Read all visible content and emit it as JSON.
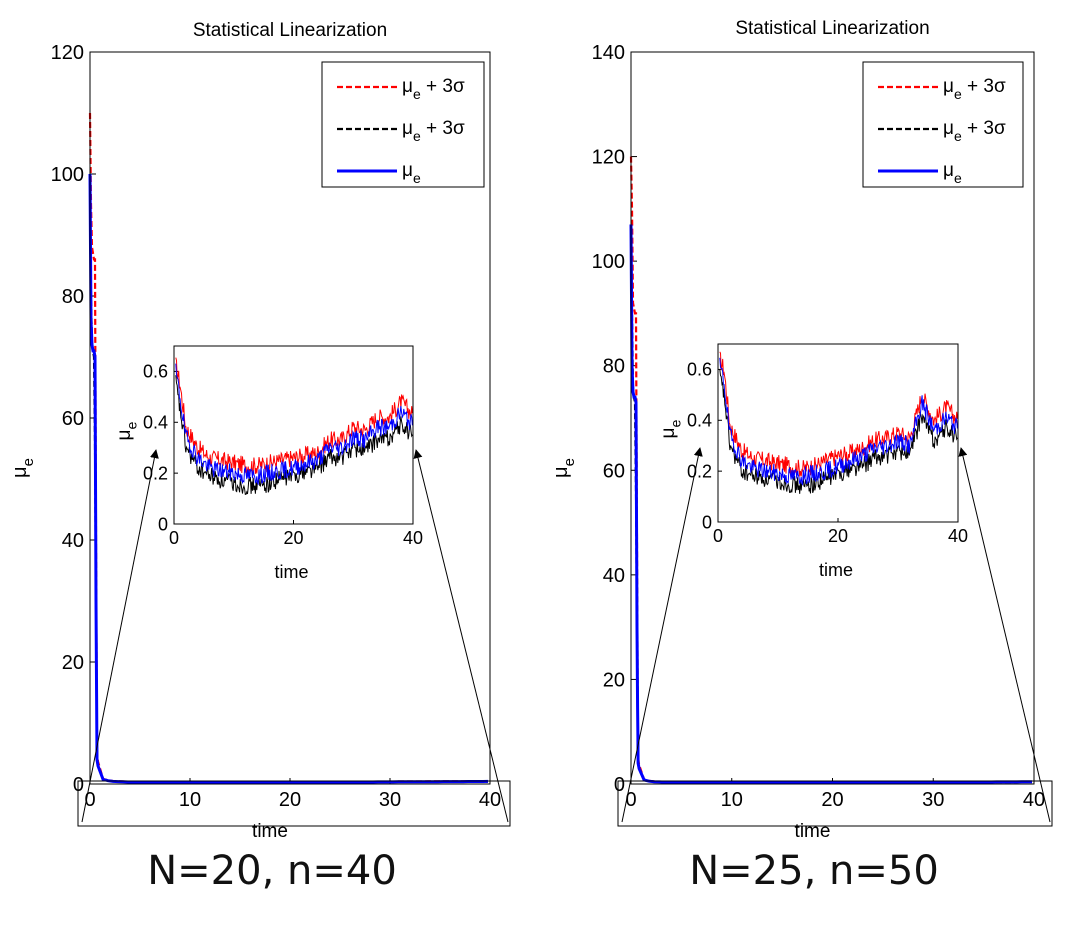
{
  "panels": [
    {
      "title": "Statistical Linearization",
      "caption": "N=20, n=40",
      "xlabel": "time",
      "ylabel": "μ",
      "ylabel_sub": "e",
      "xlim": [
        0,
        40
      ],
      "ylim": [
        0,
        120
      ],
      "xticks": [
        0,
        10,
        20,
        30,
        40
      ],
      "yticks": [
        0,
        20,
        40,
        60,
        80,
        100,
        120
      ],
      "legend": [
        {
          "main": "μ",
          "sub": "e",
          "suffix": " + 3σ",
          "color": "#ff0000",
          "style": "dashed"
        },
        {
          "main": "μ",
          "sub": "e",
          "suffix": " + 3σ",
          "color": "#000000",
          "style": "dashed"
        },
        {
          "main": "μ",
          "sub": "e",
          "suffix": "",
          "color": "#0000ff",
          "style": "solid"
        }
      ],
      "inset": {
        "xlabel": "time",
        "ylabel": "μ",
        "ylabel_sub": "e",
        "xlim": [
          0,
          40
        ],
        "ylim": [
          0,
          0.7
        ],
        "xticks": [
          0,
          20,
          40
        ],
        "yticks": [
          0,
          0.2,
          0.4,
          0.6
        ]
      }
    },
    {
      "title": "Statistical Linearization",
      "caption": "N=25, n=50",
      "xlabel": "time",
      "ylabel": "μ",
      "ylabel_sub": "e",
      "xlim": [
        0,
        40
      ],
      "ylim": [
        0,
        140
      ],
      "xticks": [
        0,
        10,
        20,
        30,
        40
      ],
      "yticks": [
        0,
        20,
        40,
        60,
        80,
        100,
        120,
        140
      ],
      "legend": [
        {
          "main": "μ",
          "sub": "e",
          "suffix": " + 3σ",
          "color": "#ff0000",
          "style": "dashed"
        },
        {
          "main": "μ",
          "sub": "e",
          "suffix": " + 3σ",
          "color": "#000000",
          "style": "dashed"
        },
        {
          "main": "μ",
          "sub": "e",
          "suffix": "",
          "color": "#0000ff",
          "style": "solid"
        }
      ],
      "inset": {
        "xlabel": "time",
        "ylabel": "μ",
        "ylabel_sub": "e",
        "xlim": [
          0,
          40
        ],
        "ylim": [
          0,
          0.7
        ],
        "xticks": [
          0,
          20,
          40
        ],
        "yticks": [
          0,
          0.2,
          0.4,
          0.6
        ]
      }
    }
  ],
  "chart_data": [
    {
      "type": "line",
      "title": "Statistical Linearization",
      "xlabel": "time",
      "ylabel": "μe",
      "xlim": [
        0,
        40
      ],
      "ylim": [
        0,
        120
      ],
      "series": [
        {
          "name": "μe + 3σ",
          "color": "#ff0000",
          "x": [
            0,
            0.1,
            0.2,
            0.3,
            0.4,
            0.5,
            0.6,
            0.7,
            1,
            2,
            5,
            10,
            20,
            30,
            40
          ],
          "y": [
            110,
            95,
            88,
            87,
            86,
            86,
            40,
            5,
            1.0,
            0.5,
            0.3,
            0.25,
            0.3,
            0.4,
            0.45
          ]
        },
        {
          "name": "μe + 3σ",
          "color": "#000000",
          "x": [
            0,
            0.1,
            0.2,
            0.3,
            0.4,
            0.5,
            0.6,
            0.7,
            1,
            2,
            5,
            10,
            20,
            30,
            40
          ],
          "y": [
            100,
            80,
            72,
            71,
            70,
            56,
            30,
            4,
            0.9,
            0.45,
            0.25,
            0.2,
            0.25,
            0.35,
            0.4
          ]
        },
        {
          "name": "μe",
          "color": "#0000ff",
          "x": [
            0,
            0.1,
            0.2,
            0.3,
            0.4,
            0.5,
            0.6,
            0.7,
            1,
            2,
            5,
            10,
            20,
            30,
            40
          ],
          "y": [
            100,
            76,
            72,
            71,
            71,
            70,
            30,
            4,
            0.9,
            0.45,
            0.25,
            0.2,
            0.25,
            0.35,
            0.42
          ]
        }
      ],
      "inset": {
        "xlim": [
          0,
          40
        ],
        "ylim": [
          0,
          0.7
        ],
        "series": [
          {
            "name": "μe + 3σ",
            "color": "#ff0000",
            "x": [
              0,
              1,
              2,
              4,
              6,
              8,
              10,
              12,
              14,
              16,
              18,
              20,
              22,
              24,
              26,
              28,
              30,
              32,
              34,
              36,
              38,
              40
            ],
            "y": [
              0.66,
              0.55,
              0.38,
              0.3,
              0.26,
              0.25,
              0.24,
              0.23,
              0.23,
              0.24,
              0.25,
              0.26,
              0.27,
              0.28,
              0.33,
              0.33,
              0.38,
              0.37,
              0.42,
              0.42,
              0.48,
              0.43
            ]
          },
          {
            "name": "μe + 3σ",
            "color": "#000000",
            "x": [
              0,
              1,
              2,
              4,
              6,
              8,
              10,
              12,
              14,
              16,
              18,
              20,
              22,
              24,
              26,
              28,
              30,
              32,
              34,
              36,
              38,
              40
            ],
            "y": [
              0.6,
              0.45,
              0.3,
              0.22,
              0.19,
              0.17,
              0.16,
              0.15,
              0.15,
              0.16,
              0.18,
              0.19,
              0.21,
              0.22,
              0.26,
              0.26,
              0.3,
              0.29,
              0.33,
              0.34,
              0.39,
              0.35
            ]
          },
          {
            "name": "μe",
            "color": "#0000ff",
            "x": [
              0,
              1,
              2,
              4,
              6,
              8,
              10,
              12,
              14,
              16,
              18,
              20,
              22,
              24,
              26,
              28,
              30,
              32,
              34,
              36,
              38,
              40
            ],
            "y": [
              0.64,
              0.5,
              0.34,
              0.26,
              0.22,
              0.21,
              0.2,
              0.19,
              0.19,
              0.2,
              0.21,
              0.22,
              0.24,
              0.25,
              0.3,
              0.3,
              0.34,
              0.33,
              0.38,
              0.38,
              0.44,
              0.39
            ]
          }
        ]
      }
    },
    {
      "type": "line",
      "title": "Statistical Linearization",
      "xlabel": "time",
      "ylabel": "μe",
      "xlim": [
        0,
        40
      ],
      "ylim": [
        0,
        140
      ],
      "series": [
        {
          "name": "μe + 3σ",
          "color": "#ff0000",
          "x": [
            0,
            0.1,
            0.2,
            0.3,
            0.4,
            0.5,
            0.6,
            0.7,
            1,
            2,
            5,
            10,
            20,
            30,
            40
          ],
          "y": [
            120,
            110,
            92,
            91,
            90,
            90,
            45,
            5,
            1.0,
            0.5,
            0.3,
            0.25,
            0.3,
            0.4,
            0.45
          ]
        },
        {
          "name": "μe + 3σ",
          "color": "#000000",
          "x": [
            0,
            0.1,
            0.2,
            0.3,
            0.4,
            0.5,
            0.6,
            0.7,
            1,
            2,
            5,
            10,
            20,
            30,
            40
          ],
          "y": [
            107,
            90,
            75,
            74,
            73,
            56,
            30,
            4,
            0.9,
            0.45,
            0.25,
            0.2,
            0.25,
            0.35,
            0.4
          ]
        },
        {
          "name": "μe",
          "color": "#0000ff",
          "x": [
            0,
            0.1,
            0.2,
            0.3,
            0.4,
            0.5,
            0.6,
            0.7,
            1,
            2,
            5,
            10,
            20,
            30,
            40
          ],
          "y": [
            107,
            80,
            75,
            74,
            74,
            73,
            30,
            4,
            0.9,
            0.45,
            0.25,
            0.2,
            0.25,
            0.35,
            0.42
          ]
        }
      ],
      "inset": {
        "xlim": [
          0,
          40
        ],
        "ylim": [
          0,
          0.7
        ],
        "series": [
          {
            "name": "μe + 3σ",
            "color": "#ff0000",
            "x": [
              0,
              1,
              2,
              4,
              6,
              8,
              10,
              12,
              14,
              16,
              18,
              20,
              22,
              24,
              26,
              28,
              30,
              32,
              34,
              36,
              38,
              40
            ],
            "y": [
              0.66,
              0.6,
              0.38,
              0.28,
              0.25,
              0.24,
              0.23,
              0.22,
              0.21,
              0.22,
              0.24,
              0.26,
              0.27,
              0.29,
              0.32,
              0.33,
              0.35,
              0.33,
              0.5,
              0.4,
              0.45,
              0.4
            ]
          },
          {
            "name": "μe + 3σ",
            "color": "#000000",
            "x": [
              0,
              1,
              2,
              4,
              6,
              8,
              10,
              12,
              14,
              16,
              18,
              20,
              22,
              24,
              26,
              28,
              30,
              32,
              34,
              36,
              38,
              40
            ],
            "y": [
              0.6,
              0.5,
              0.3,
              0.2,
              0.18,
              0.17,
              0.16,
              0.15,
              0.14,
              0.15,
              0.17,
              0.19,
              0.21,
              0.22,
              0.25,
              0.26,
              0.28,
              0.27,
              0.42,
              0.32,
              0.37,
              0.33
            ]
          },
          {
            "name": "μe",
            "color": "#0000ff",
            "x": [
              0,
              1,
              2,
              4,
              6,
              8,
              10,
              12,
              14,
              16,
              18,
              20,
              22,
              24,
              26,
              28,
              30,
              32,
              34,
              36,
              38,
              40
            ],
            "y": [
              0.64,
              0.55,
              0.34,
              0.24,
              0.21,
              0.2,
              0.19,
              0.18,
              0.18,
              0.19,
              0.2,
              0.22,
              0.24,
              0.26,
              0.29,
              0.3,
              0.32,
              0.3,
              0.47,
              0.36,
              0.41,
              0.37
            ]
          }
        ]
      }
    }
  ]
}
